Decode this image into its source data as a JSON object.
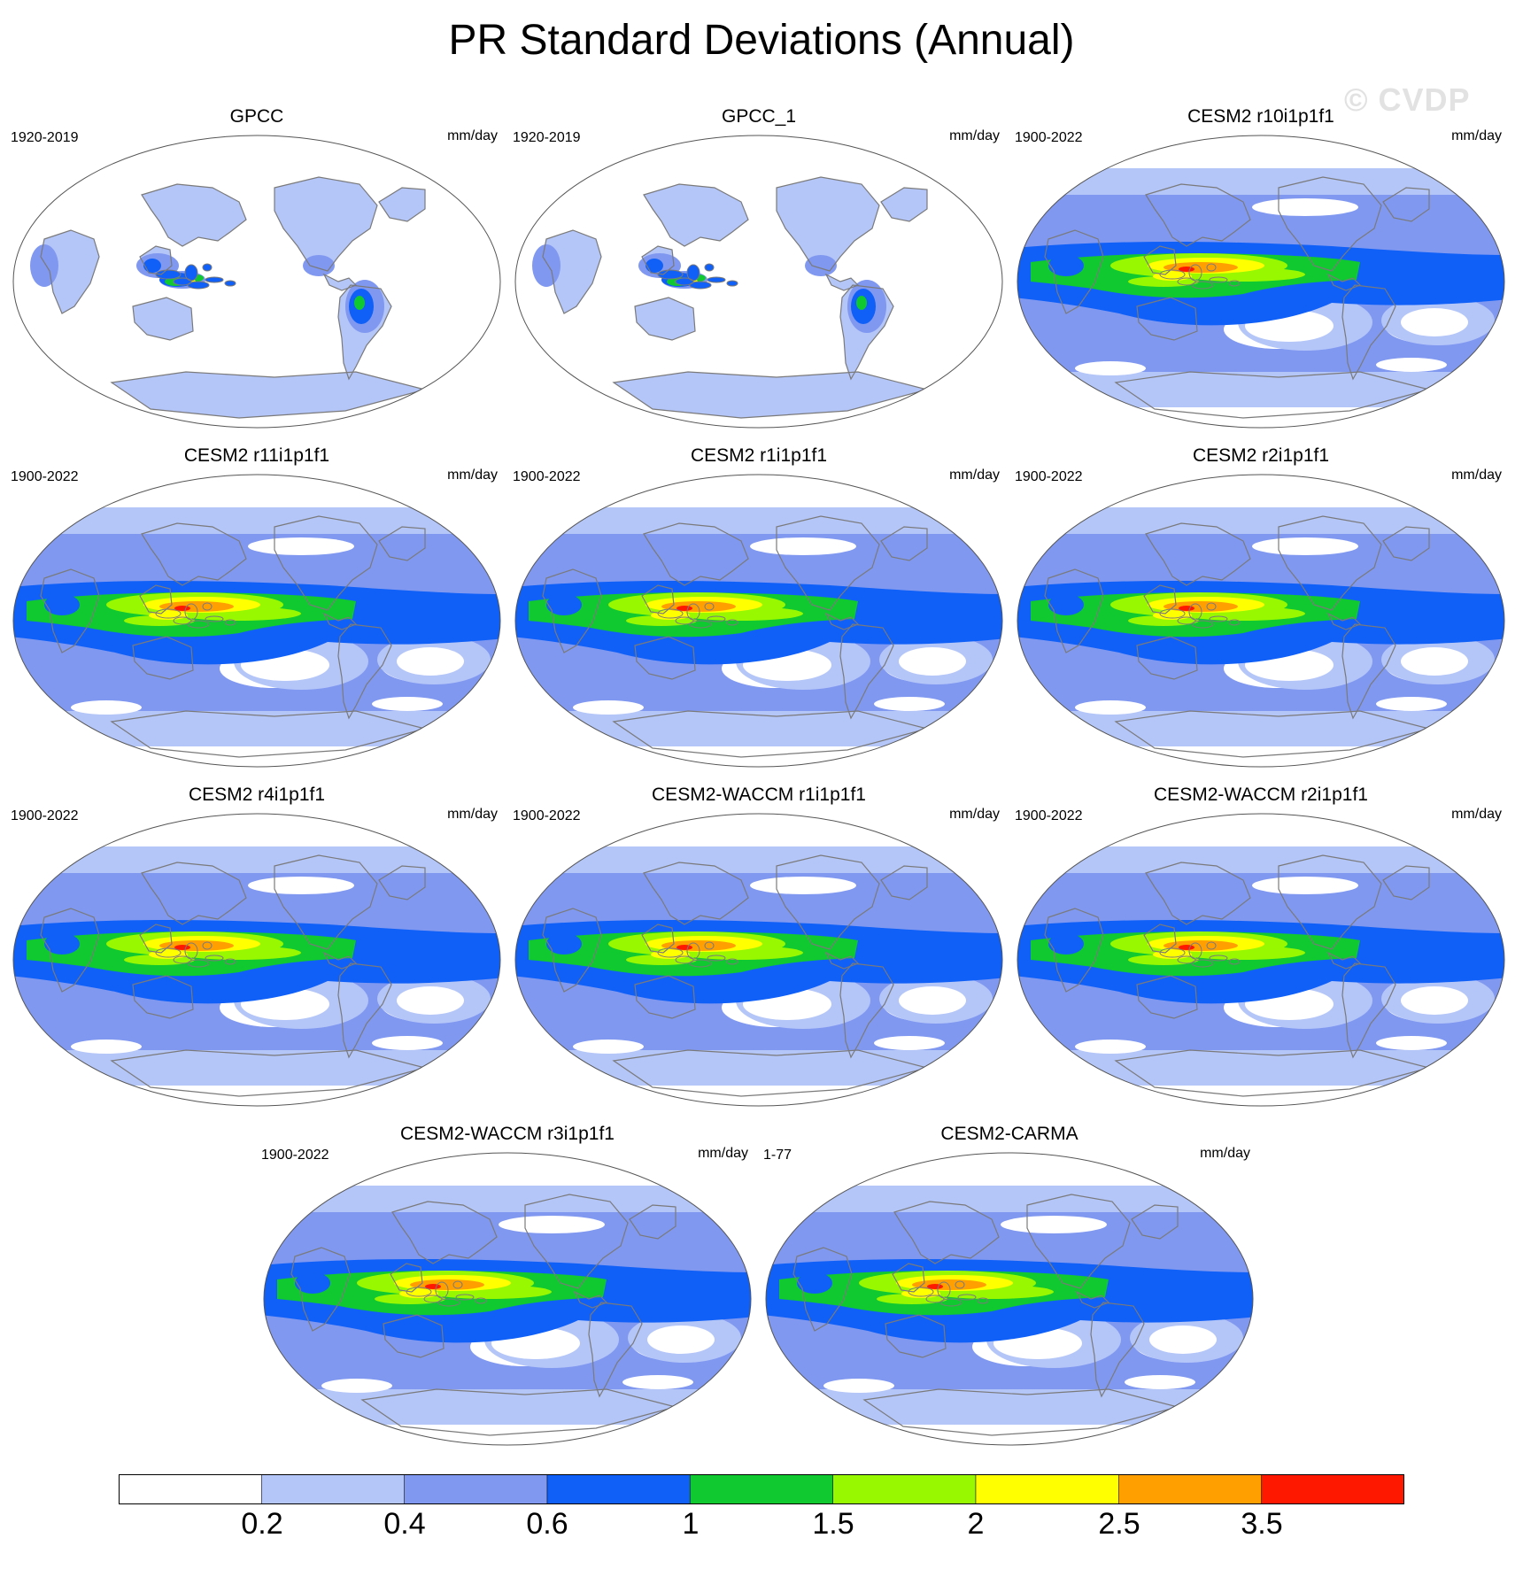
{
  "title": "PR Standard Deviations (Annual)",
  "watermark": "© CVDP",
  "panels": [
    {
      "title": "GPCC",
      "period": "1920-2019",
      "units": "mm/day",
      "type": "obs"
    },
    {
      "title": "GPCC_1",
      "period": "1920-2019",
      "units": "mm/day",
      "type": "obs"
    },
    {
      "title": "CESM2 r10i1p1f1",
      "period": "1900-2022",
      "units": "mm/day",
      "type": "model"
    },
    {
      "title": "CESM2 r11i1p1f1",
      "period": "1900-2022",
      "units": "mm/day",
      "type": "model"
    },
    {
      "title": "CESM2 r1i1p1f1",
      "period": "1900-2022",
      "units": "mm/day",
      "type": "model"
    },
    {
      "title": "CESM2 r2i1p1f1",
      "period": "1900-2022",
      "units": "mm/day",
      "type": "model"
    },
    {
      "title": "CESM2 r4i1p1f1",
      "period": "1900-2022",
      "units": "mm/day",
      "type": "model"
    },
    {
      "title": "CESM2-WACCM r1i1p1f1",
      "period": "1900-2022",
      "units": "mm/day",
      "type": "model"
    },
    {
      "title": "CESM2-WACCM r2i1p1f1",
      "period": "1900-2022",
      "units": "mm/day",
      "type": "model"
    },
    {
      "title": "CESM2-WACCM r3i1p1f1",
      "period": "1900-2022",
      "units": "mm/day",
      "type": "model"
    },
    {
      "title": "CESM2-CARMA",
      "period": "1-77",
      "units": "mm/day",
      "type": "model"
    }
  ],
  "colorbar": {
    "colors": [
      "#ffffff",
      "#b4c5f8",
      "#8098f0",
      "#1060f8",
      "#10c830",
      "#98f800",
      "#ffff00",
      "#ffa000",
      "#ff1800"
    ],
    "labels": [
      "0.2",
      "0.4",
      "0.6",
      "1",
      "1.5",
      "2",
      "2.5",
      "3.5"
    ]
  }
}
